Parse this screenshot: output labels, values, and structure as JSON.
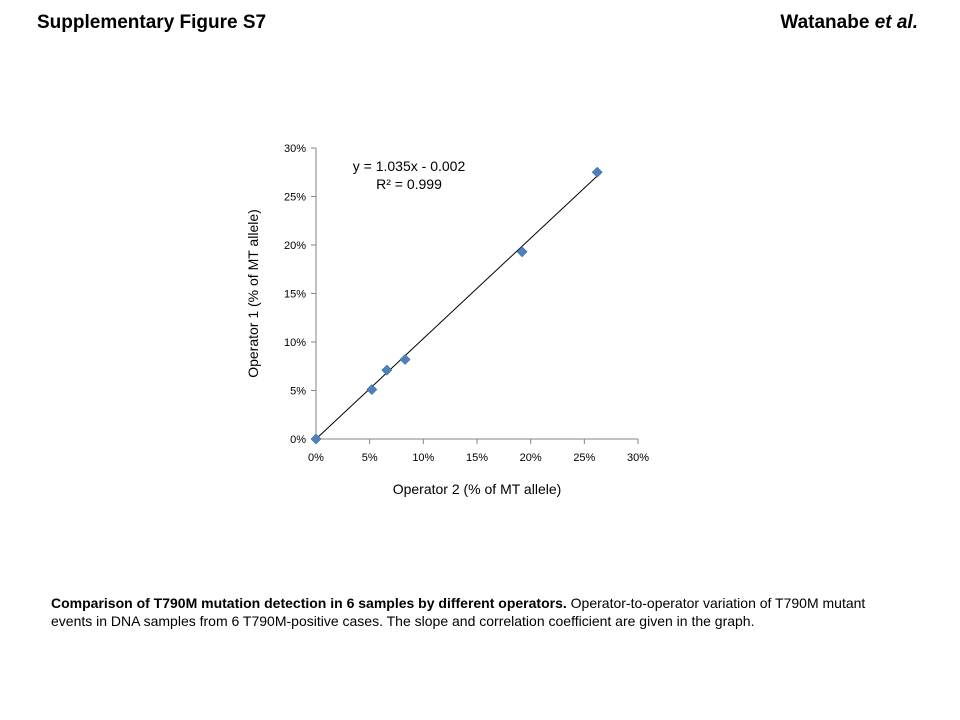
{
  "header": {
    "title": "Supplementary Figure S7",
    "author_main": "Watanabe",
    "author_suffix": "et al."
  },
  "caption": {
    "bold": "Comparison of T790M mutation detection in 6 samples by different operators.",
    "text": "Operator-to-operator variation of T790M mutant events in DNA samples from 6 T790M-positive cases. The slope and correlation coefficient are given in the graph."
  },
  "chart_data": {
    "type": "scatter",
    "xlabel": "Operator 2 (% of MT allele)",
    "ylabel": "Operator 1 (% of MT allele)",
    "xlim": [
      0,
      30
    ],
    "ylim": [
      0,
      30
    ],
    "xticks": [
      "0%",
      "5%",
      "10%",
      "15%",
      "20%",
      "25%",
      "30%"
    ],
    "yticks": [
      "0%",
      "5%",
      "10%",
      "15%",
      "20%",
      "25%",
      "30%"
    ],
    "x": [
      0,
      5.2,
      6.6,
      8.3,
      19.2,
      26.2
    ],
    "y": [
      0,
      5.1,
      7.1,
      8.2,
      19.3,
      27.5
    ],
    "trendline": {
      "slope": 1.035,
      "intercept": -0.002,
      "equation": "y = 1.035x - 0.002",
      "r2": "R² = 0.999"
    },
    "grid": false,
    "marker_color": "#4f81bd"
  }
}
